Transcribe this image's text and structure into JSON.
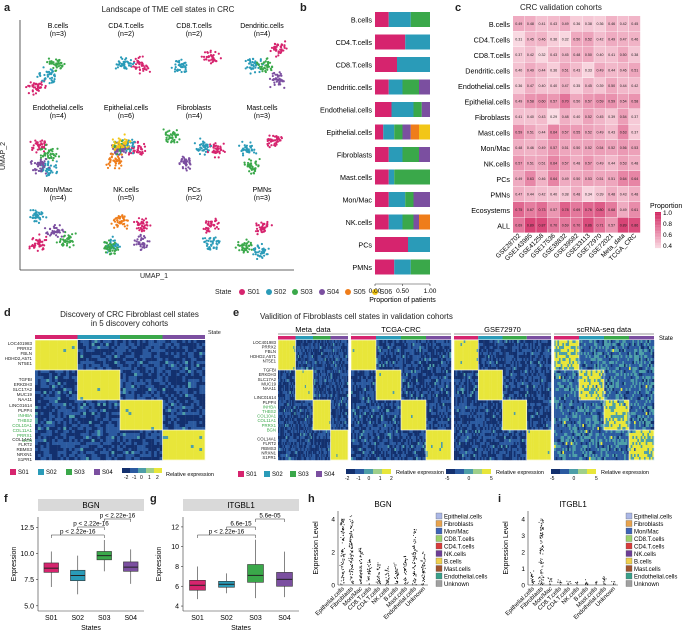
{
  "panel_labels": [
    "a",
    "b",
    "c",
    "d",
    "e",
    "f",
    "g",
    "h",
    "i"
  ],
  "panel_a": {
    "title": "Landscape of TME cell states in CRC",
    "xlabel": "UMAP_1",
    "ylabel": "UMAP_2",
    "clusters": [
      {
        "name": "B.cells",
        "n": "(n=3)"
      },
      {
        "name": "CD4.T.cells",
        "n": "(n=2)"
      },
      {
        "name": "CD8.T.cells",
        "n": "(n=2)"
      },
      {
        "name": "Dendritic.cells",
        "n": "(n=4)"
      },
      {
        "name": "Endothelial.cells",
        "n": "(n=4)"
      },
      {
        "name": "Epithelial.cells",
        "n": "(n=6)"
      },
      {
        "name": "Fibroblasts",
        "n": "(n=4)"
      },
      {
        "name": "Mast.cells",
        "n": "(n=3)"
      },
      {
        "name": "Mon/Mac",
        "n": "(n=4)"
      },
      {
        "name": "NK.cells",
        "n": "(n=5)"
      },
      {
        "name": "PCs",
        "n": "(n=2)"
      },
      {
        "name": "PMNs",
        "n": "(n=3)"
      }
    ],
    "state_title": "State",
    "states": [
      {
        "name": "S01",
        "color": "#d6246e"
      },
      {
        "name": "S02",
        "color": "#2a9bb8"
      },
      {
        "name": "S03",
        "color": "#3aa84a"
      },
      {
        "name": "S04",
        "color": "#7b4fa0"
      },
      {
        "name": "S05",
        "color": "#ef7d1a"
      },
      {
        "name": "S06",
        "color": "#f2c618"
      }
    ]
  },
  "chart_data": [
    {
      "type": "bar",
      "orientation": "horizontal-stacked",
      "panel": "b",
      "xlabel": "Proportion of patients",
      "xticks": [
        "0.00",
        "0.50",
        "1.00"
      ],
      "xlim": [
        0,
        1
      ],
      "categories": [
        "B.cells",
        "CD4.T.cells",
        "CD8.T.cells",
        "Dendritic.cells",
        "Endothelial.cells",
        "Epithelial.cells",
        "Fibroblasts",
        "Mast.cells",
        "Mon/Mac",
        "NK.cells",
        "PCs",
        "PMNs"
      ],
      "series": [
        {
          "name": "S01",
          "color": "#d6246e",
          "values": [
            0.25,
            0.55,
            0.4,
            0.25,
            0.3,
            0.15,
            0.25,
            0.25,
            0.25,
            0.25,
            0.6,
            0.35
          ]
        },
        {
          "name": "S02",
          "color": "#2a9bb8",
          "values": [
            0.4,
            0.45,
            0.6,
            0.25,
            0.4,
            0.2,
            0.25,
            0.1,
            0.3,
            0.25,
            0.4,
            0.3
          ]
        },
        {
          "name": "S03",
          "color": "#3aa84a",
          "values": [
            0.35,
            0,
            0,
            0.3,
            0.15,
            0.15,
            0.3,
            0.65,
            0.15,
            0.2,
            0,
            0.35
          ]
        },
        {
          "name": "S04",
          "color": "#7b4fa0",
          "values": [
            0,
            0,
            0,
            0.2,
            0.15,
            0.15,
            0.2,
            0,
            0.3,
            0.1,
            0,
            0
          ]
        },
        {
          "name": "S05",
          "color": "#ef7d1a",
          "values": [
            0,
            0,
            0,
            0,
            0,
            0.15,
            0,
            0,
            0,
            0.2,
            0,
            0
          ]
        },
        {
          "name": "S06",
          "color": "#f2c618",
          "values": [
            0,
            0,
            0,
            0,
            0,
            0.2,
            0,
            0,
            0,
            0,
            0,
            0
          ]
        }
      ]
    },
    {
      "type": "heatmap",
      "panel": "c",
      "title": "CRC validation cohorts",
      "rows": [
        "B.cells",
        "CD4.T.cells",
        "CD8.T.cells",
        "Dendritic.cells",
        "Endothelial.cells",
        "Epithelial.cells",
        "Fibroblasts",
        "Mast.cells",
        "Mon/Mac",
        "NK.cells",
        "PCs",
        "PMNs",
        "Ecosystems",
        "ALL"
      ],
      "cols": [
        "GSE28702",
        "GSE143985",
        "GSE41258",
        "GSE17536",
        "GSE38832",
        "GSE39582",
        "GSE33113",
        "GSE72970",
        "GSE72021",
        "Meta_data",
        "TCGA_CRC"
      ],
      "values": [
        [
          0.49,
          0.48,
          0.41,
          0.43,
          0.49,
          0.36,
          0.38,
          0.36,
          0.46,
          0.42,
          0.45
        ],
        [
          0.31,
          0.45,
          0.46,
          0.36,
          0.32,
          0.5,
          0.52,
          0.42,
          0.49,
          0.47,
          0.46
        ],
        [
          0.37,
          0.42,
          0.32,
          0.43,
          0.45,
          0.48,
          0.5,
          0.4,
          0.41,
          0.5,
          0.38
        ],
        [
          0.4,
          0.49,
          0.44,
          0.36,
          0.51,
          0.43,
          0.33,
          0.49,
          0.44,
          0.46,
          0.51
        ],
        [
          0.36,
          0.47,
          0.4,
          0.4,
          0.47,
          0.35,
          0.45,
          0.39,
          0.5,
          0.44,
          0.42
        ],
        [
          0.49,
          0.58,
          0.6,
          0.57,
          0.7,
          0.5,
          0.57,
          0.59,
          0.59,
          0.54,
          0.58
        ],
        [
          0.41,
          0.4,
          0.43,
          0.29,
          0.48,
          0.4,
          0.52,
          0.45,
          0.39,
          0.54,
          0.37
        ],
        [
          0.59,
          0.51,
          0.44,
          0.64,
          0.57,
          0.55,
          0.52,
          0.49,
          0.43,
          0.63,
          0.37
        ],
        [
          0.48,
          0.46,
          0.49,
          0.57,
          0.51,
          0.5,
          0.52,
          0.54,
          0.52,
          0.56,
          0.53
        ],
        [
          0.57,
          0.51,
          0.51,
          0.64,
          0.57,
          0.48,
          0.57,
          0.49,
          0.44,
          0.53,
          0.48
        ],
        [
          0.49,
          0.63,
          0.46,
          0.64,
          0.49,
          0.5,
          0.53,
          0.51,
          0.51,
          0.64,
          0.64
        ],
        [
          0.47,
          0.44,
          0.42,
          0.4,
          0.38,
          0.48,
          0.34,
          0.39,
          0.48,
          0.43,
          0.48
        ],
        [
          0.75,
          0.67,
          0.73,
          0.57,
          0.78,
          0.69,
          0.76,
          0.8,
          0.68,
          0.49,
          0.61
        ],
        [
          0.69,
          0.89,
          0.87,
          0.7,
          0.69,
          0.7,
          0.86,
          0.71,
          0.57,
          0.89,
          0.86
        ]
      ],
      "colorbar_title": "Proportion",
      "colorbar_ticks": [
        "1.0",
        "0.8",
        "0.6",
        "0.4"
      ]
    },
    {
      "type": "box",
      "panel": "f",
      "title": "BGN",
      "xlabel": "States",
      "ylabel": "Expression",
      "categories": [
        "S01",
        "S02",
        "S03",
        "S04"
      ],
      "colors": [
        "#d6246e",
        "#2a9bb8",
        "#3aa84a",
        "#7b4fa0"
      ],
      "yticks": [
        "5.0",
        "7.5",
        "10.0",
        "12.5"
      ],
      "ylim": [
        4.5,
        13.5
      ],
      "stats": [
        {
          "q1": 8.2,
          "med": 8.6,
          "q3": 9.1,
          "min": 6.8,
          "max": 10.2
        },
        {
          "q1": 7.4,
          "med": 7.9,
          "q3": 8.4,
          "min": 6.1,
          "max": 9.8
        },
        {
          "q1": 9.4,
          "med": 9.8,
          "q3": 10.2,
          "min": 8.3,
          "max": 11.3
        },
        {
          "q1": 8.3,
          "med": 8.7,
          "q3": 9.2,
          "min": 7.1,
          "max": 10.4
        }
      ],
      "pvalues": [
        "p < 2.22e-16",
        "p < 2.22e-16",
        "p < 2.22e-16"
      ]
    },
    {
      "type": "box",
      "panel": "g",
      "title": "ITGBL1",
      "xlabel": "States",
      "ylabel": "Expression",
      "categories": [
        "S01",
        "S02",
        "S03",
        "S04"
      ],
      "colors": [
        "#d6246e",
        "#2a9bb8",
        "#3aa84a",
        "#7b4fa0"
      ],
      "yticks": [
        "4",
        "6",
        "8",
        "10",
        "12"
      ],
      "ylim": [
        3.5,
        13
      ],
      "stats": [
        {
          "q1": 5.6,
          "med": 6.1,
          "q3": 6.6,
          "min": 4.7,
          "max": 8.0
        },
        {
          "q1": 5.9,
          "med": 6.2,
          "q3": 6.5,
          "min": 5.3,
          "max": 7.3
        },
        {
          "q1": 6.4,
          "med": 7.1,
          "q3": 8.2,
          "min": 4.8,
          "max": 10.7
        },
        {
          "q1": 6.0,
          "med": 6.7,
          "q3": 7.4,
          "min": 4.9,
          "max": 9.5
        }
      ],
      "pvalues": [
        "p < 2.22e-16",
        "6.6e-15",
        "5.6e-05"
      ]
    }
  ],
  "panel_d": {
    "title_line1": "Discovery of CRC Fibroblast cell states",
    "title_line2": "in 5 discovery cohorts",
    "state_label": "State",
    "genes_top": [
      "LOC401983",
      "PRRX2",
      "FBLN",
      "HDHD2,A571",
      "NT5E1"
    ],
    "genes_mid1": [
      "TGFBI",
      "ERKDH3",
      "SLC17A2",
      "MUC19",
      "NAA11"
    ],
    "genes_mid2": [
      "LINC01614",
      "PLPP4",
      "INHBA",
      "THBS2",
      "COL10A1",
      "COL11A1",
      "PRRX1",
      "BGN"
    ],
    "genes_bot": [
      "COL14A1",
      "FLRT2",
      "RBMS3",
      "NRXN1",
      "S1PR1"
    ],
    "legend_states": [
      "S01",
      "S02",
      "S03",
      "S04"
    ],
    "colorbar_ticks": [
      "-2",
      "-1",
      "0",
      "1",
      "2"
    ],
    "colorbar_label": "Relative expression"
  },
  "panel_e": {
    "title": "Validition of Fibroblasts cell states in validation cohorts",
    "cohorts": [
      "Meta_data",
      "TCGA-CRC",
      "GSE72970",
      "scRNA-seq data"
    ],
    "state_label": "State",
    "legend_states": [
      "S01",
      "S02",
      "S03",
      "S04"
    ],
    "cb1_ticks": [
      "-2",
      "-1",
      "0",
      "1",
      "2"
    ],
    "cb2_ticks": [
      "-5",
      "0",
      "5"
    ],
    "cb3_ticks": [
      "-5",
      "0",
      "5"
    ],
    "colorbar_label": "Relative expression"
  },
  "panel_h": {
    "title": "BGN",
    "ylabel": "Expression Level",
    "yticks": [
      "0",
      "2",
      "4"
    ],
    "cells": [
      "Epithelial.cells",
      "Fibroblasts",
      "Mon/Mac",
      "CD8.T.cells",
      "CD4.T.cells",
      "NK.cells",
      "B.cells",
      "Mast.cells",
      "Endothelial.cells",
      "Unknown"
    ],
    "colors": [
      "#aab7e6",
      "#e8a34d",
      "#3c63b8",
      "#9bd06a",
      "#d83b3b",
      "#6d3d96",
      "#f0d04e",
      "#a0522d",
      "#39a08a",
      "#a0a0a0"
    ]
  },
  "panel_i": {
    "title": "ITGBL1",
    "ylabel": "Expression Level",
    "yticks": [
      "0",
      "1",
      "2",
      "3",
      "4"
    ],
    "cells": [
      "Epithelial.cells",
      "Fibroblasts",
      "Mon/Mac",
      "CD8.T.cells",
      "CD4.T.cells",
      "NK.cells",
      "B.cells",
      "Mast.cells",
      "Endothelial.cells",
      "Unknown"
    ]
  }
}
